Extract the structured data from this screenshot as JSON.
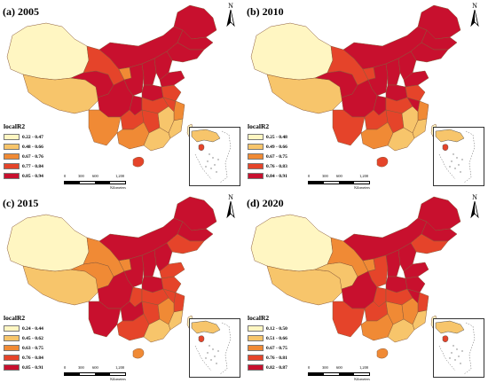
{
  "legend_title": "localR2",
  "north_label": "N",
  "scale": {
    "ticks": [
      "0",
      "300",
      "600",
      "1,200"
    ],
    "unit": "Kilometers"
  },
  "colors": [
    "#fff6c2",
    "#f7c56b",
    "#f08a35",
    "#e5442a",
    "#c8102e"
  ],
  "panels": [
    {
      "title": "(a) 2005",
      "legend": [
        "0.22 - 0.47",
        "0.48 - 0.66",
        "0.67 - 0.76",
        "0.77 - 0.84",
        "0.85 - 0.94"
      ]
    },
    {
      "title": "(b) 2010",
      "legend": [
        "0.25 - 0.48",
        "0.49 - 0.66",
        "0.67 - 0.75",
        "0.76 - 0.83",
        "0.84 - 0.91"
      ]
    },
    {
      "title": "(c) 2015",
      "legend": [
        "0.24 - 0.44",
        "0.45 - 0.62",
        "0.63 - 0.75",
        "0.76 - 0.84",
        "0.85 - 0.91"
      ]
    },
    {
      "title": "(d) 2020",
      "legend": [
        "0.12 - 0.50",
        "0.51 - 0.66",
        "0.67 - 0.75",
        "0.76 - 0.81",
        "0.82 - 0.87"
      ]
    }
  ]
}
